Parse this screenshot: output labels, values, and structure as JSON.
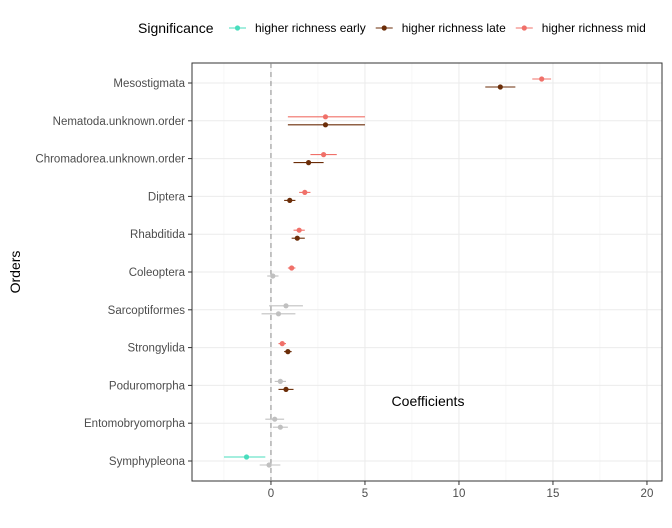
{
  "chart_data": {
    "type": "forest",
    "xlabel": "Coefficients",
    "ylabel": "Orders",
    "xlim": [
      -4.2,
      20.8
    ],
    "xticks": [
      0,
      5,
      10,
      15,
      20
    ],
    "categories": [
      "Mesostigmata",
      "Nematoda.unknown.order",
      "Chromadorea.unknown.order",
      "Diptera",
      "Rhabditida",
      "Coleoptera",
      "Sarcoptiformes",
      "Strongylida",
      "Poduromorpha",
      "Entomobryomorpha",
      "Symphypleona"
    ],
    "reference_line": 0,
    "grid": true,
    "legend": {
      "title": "Significance",
      "position": "top",
      "entries": [
        {
          "label": "higher richness early",
          "color": "#48DDBD"
        },
        {
          "label": "higher richness late",
          "color": "#6B2D08"
        },
        {
          "label": "higher richness mid",
          "color": "#F07069"
        }
      ]
    },
    "colors": {
      "ns": "#C0C0C0"
    },
    "points": [
      {
        "order": "Mesostigmata",
        "group": "mid",
        "estimate": 14.4,
        "lo": 13.9,
        "hi": 14.9
      },
      {
        "order": "Mesostigmata",
        "group": "late",
        "estimate": 12.2,
        "lo": 11.4,
        "hi": 13.0
      },
      {
        "order": "Nematoda.unknown.order",
        "group": "mid",
        "estimate": 2.9,
        "lo": 0.9,
        "hi": 5.0
      },
      {
        "order": "Nematoda.unknown.order",
        "group": "late",
        "estimate": 2.9,
        "lo": 0.9,
        "hi": 5.0
      },
      {
        "order": "Chromadorea.unknown.order",
        "group": "mid",
        "estimate": 2.8,
        "lo": 2.1,
        "hi": 3.5
      },
      {
        "order": "Chromadorea.unknown.order",
        "group": "late",
        "estimate": 2.0,
        "lo": 1.2,
        "hi": 2.8
      },
      {
        "order": "Diptera",
        "group": "mid",
        "estimate": 1.8,
        "lo": 1.5,
        "hi": 2.1
      },
      {
        "order": "Diptera",
        "group": "late",
        "estimate": 1.0,
        "lo": 0.7,
        "hi": 1.3
      },
      {
        "order": "Rhabditida",
        "group": "mid",
        "estimate": 1.5,
        "lo": 1.2,
        "hi": 1.8
      },
      {
        "order": "Rhabditida",
        "group": "late",
        "estimate": 1.4,
        "lo": 1.1,
        "hi": 1.8
      },
      {
        "order": "Coleoptera",
        "group": "mid",
        "estimate": 1.1,
        "lo": 0.9,
        "hi": 1.3
      },
      {
        "order": "Coleoptera",
        "group": "ns",
        "estimate": 0.1,
        "lo": -0.2,
        "hi": 0.4
      },
      {
        "order": "Sarcoptiformes",
        "group": "ns",
        "estimate": 0.8,
        "lo": -0.1,
        "hi": 1.7
      },
      {
        "order": "Sarcoptiformes",
        "group": "ns",
        "estimate": 0.4,
        "lo": -0.5,
        "hi": 1.3
      },
      {
        "order": "Strongylida",
        "group": "mid",
        "estimate": 0.6,
        "lo": 0.4,
        "hi": 0.8
      },
      {
        "order": "Strongylida",
        "group": "late",
        "estimate": 0.9,
        "lo": 0.7,
        "hi": 1.1
      },
      {
        "order": "Poduromorpha",
        "group": "ns",
        "estimate": 0.5,
        "lo": 0.2,
        "hi": 0.8
      },
      {
        "order": "Poduromorpha",
        "group": "late",
        "estimate": 0.8,
        "lo": 0.4,
        "hi": 1.2
      },
      {
        "order": "Entomobryomorpha",
        "group": "ns",
        "estimate": 0.2,
        "lo": -0.3,
        "hi": 0.7
      },
      {
        "order": "Entomobryomorpha",
        "group": "ns",
        "estimate": 0.5,
        "lo": 0.1,
        "hi": 0.9
      },
      {
        "order": "Symphypleona",
        "group": "early",
        "estimate": -1.3,
        "lo": -2.5,
        "hi": -0.3
      },
      {
        "order": "Symphypleona",
        "group": "ns",
        "estimate": -0.1,
        "lo": -0.6,
        "hi": 0.5
      }
    ]
  }
}
